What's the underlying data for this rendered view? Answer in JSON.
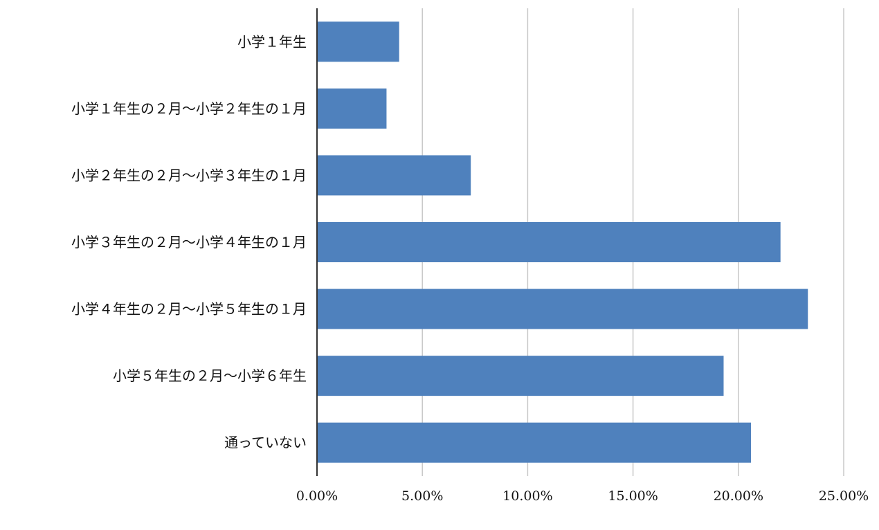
{
  "chart_data": {
    "type": "bar",
    "orientation": "horizontal",
    "title": "",
    "xlabel": "",
    "ylabel": "",
    "categories": [
      "小学１年生",
      "小学１年生の２月〜小学２年生の１月",
      "小学２年生の２月〜小学３年生の１月",
      "小学３年生の２月〜小学４年生の１月",
      "小学４年生の２月〜小学５年生の１月",
      "小学５年生の２月〜小学６年生",
      "通っていない"
    ],
    "values": [
      3.9,
      3.3,
      7.3,
      22.0,
      23.3,
      19.3,
      20.6
    ],
    "xlim": [
      0,
      25
    ],
    "ticks": [
      0,
      5,
      10,
      15,
      20,
      25
    ],
    "tick_labels": [
      "0.00%",
      "5.00%",
      "10.00%",
      "15.00%",
      "20.00%",
      "25.00%"
    ],
    "grid": true,
    "colors": {
      "bar": "#4f81bd",
      "grid": "#c8c8c8",
      "axis": "#333333"
    }
  }
}
